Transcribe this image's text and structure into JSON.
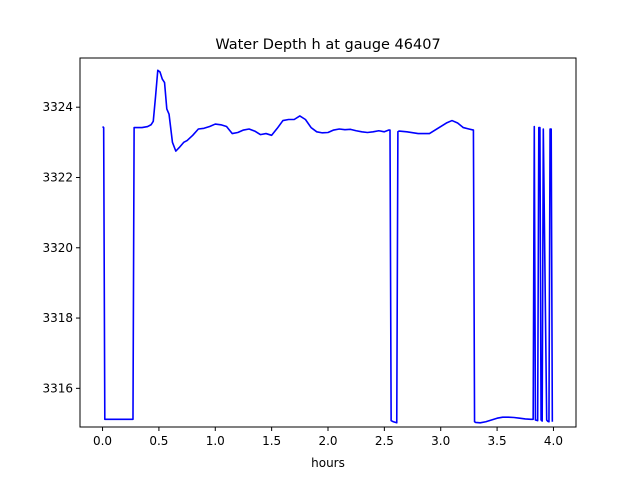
{
  "chart_data": {
    "type": "line",
    "title": "Water Depth h at gauge 46407",
    "xlabel": "hours",
    "ylabel": "",
    "xlim": [
      -0.2,
      4.2
    ],
    "ylim": [
      3314.9,
      3325.4
    ],
    "xticks": [
      0.0,
      0.5,
      1.0,
      1.5,
      2.0,
      2.5,
      3.0,
      3.5,
      4.0
    ],
    "xtick_labels": [
      "0.0",
      "0.5",
      "1.0",
      "1.5",
      "2.0",
      "2.5",
      "3.0",
      "3.5",
      "4.0"
    ],
    "yticks": [
      3316,
      3318,
      3320,
      3322,
      3324
    ],
    "ytick_labels": [
      "3316",
      "3318",
      "3320",
      "3322",
      "3324"
    ],
    "grid": false,
    "series": [
      {
        "color": "#0000ff",
        "x": [
          0.0,
          0.01,
          0.02,
          0.27,
          0.28,
          0.3,
          0.35,
          0.4,
          0.43,
          0.45,
          0.47,
          0.49,
          0.51,
          0.53,
          0.55,
          0.57,
          0.59,
          0.62,
          0.65,
          0.68,
          0.72,
          0.75,
          0.8,
          0.85,
          0.9,
          0.95,
          1.0,
          1.05,
          1.1,
          1.15,
          1.2,
          1.25,
          1.3,
          1.35,
          1.4,
          1.45,
          1.5,
          1.55,
          1.6,
          1.65,
          1.7,
          1.75,
          1.8,
          1.85,
          1.9,
          1.95,
          2.0,
          2.05,
          2.1,
          2.15,
          2.2,
          2.25,
          2.3,
          2.35,
          2.4,
          2.45,
          2.5,
          2.54,
          2.55,
          2.56,
          2.58,
          2.61,
          2.62,
          2.63,
          2.7,
          2.8,
          2.9,
          3.0,
          3.05,
          3.1,
          3.15,
          3.2,
          3.25,
          3.29,
          3.3,
          3.31,
          3.35,
          3.4,
          3.45,
          3.5,
          3.55,
          3.6,
          3.65,
          3.7,
          3.75,
          3.8,
          3.82,
          3.83,
          3.84,
          3.86,
          3.87,
          3.88,
          3.89,
          3.9,
          3.91,
          3.94,
          3.95,
          3.96,
          3.97,
          3.98,
          3.99
        ],
        "y": [
          3323.45,
          3323.42,
          3315.12,
          3315.12,
          3323.42,
          3323.42,
          3323.42,
          3323.45,
          3323.5,
          3323.6,
          3324.3,
          3325.05,
          3325.0,
          3324.8,
          3324.7,
          3323.95,
          3323.8,
          3323.0,
          3322.75,
          3322.85,
          3323.0,
          3323.05,
          3323.2,
          3323.38,
          3323.4,
          3323.45,
          3323.52,
          3323.5,
          3323.45,
          3323.25,
          3323.28,
          3323.35,
          3323.38,
          3323.32,
          3323.22,
          3323.25,
          3323.2,
          3323.4,
          3323.62,
          3323.65,
          3323.65,
          3323.75,
          3323.65,
          3323.42,
          3323.3,
          3323.27,
          3323.28,
          3323.35,
          3323.38,
          3323.36,
          3323.37,
          3323.33,
          3323.3,
          3323.28,
          3323.3,
          3323.33,
          3323.3,
          3323.35,
          3323.35,
          3315.08,
          3315.05,
          3315.02,
          3323.3,
          3323.32,
          3323.3,
          3323.25,
          3323.25,
          3323.45,
          3323.55,
          3323.62,
          3323.55,
          3323.42,
          3323.38,
          3323.35,
          3315.05,
          3315.03,
          3315.02,
          3315.05,
          3315.1,
          3315.15,
          3315.18,
          3315.18,
          3315.17,
          3315.15,
          3315.13,
          3315.12,
          3315.12,
          3323.45,
          3315.1,
          3315.08,
          3323.42,
          3323.42,
          3315.1,
          3315.07,
          3323.38,
          3315.1,
          3315.06,
          3315.05,
          3323.38,
          3323.38,
          3315.05
        ]
      }
    ]
  }
}
